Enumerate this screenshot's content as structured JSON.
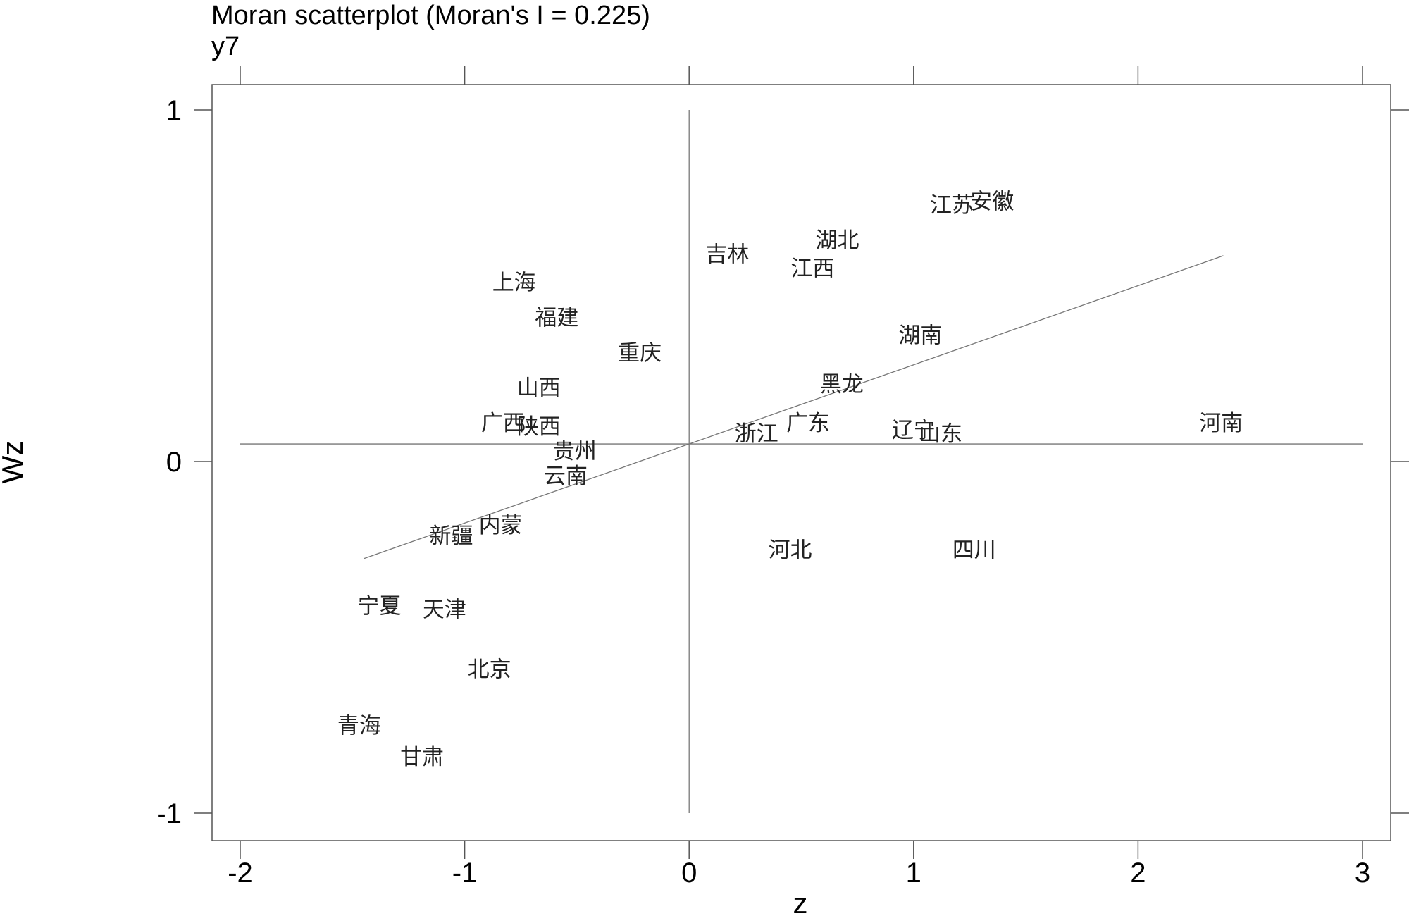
{
  "chart_data": {
    "type": "scatter",
    "title": "Moran scatterplot (Moran's I = 0.225)",
    "subtitle": "y7",
    "xlabel": "z",
    "ylabel": "Wz",
    "xlim": [
      -2.12,
      3.12
    ],
    "ylim": [
      -1.08,
      1.08
    ],
    "x_ticks": [
      -2,
      -1,
      0,
      1,
      2,
      3
    ],
    "x_tick_labels": [
      "-2",
      "-1",
      "0",
      "1",
      "2",
      "3"
    ],
    "y_ticks": [
      -1,
      0,
      1
    ],
    "y_tick_labels": [
      "-1",
      "0",
      "1"
    ],
    "grid": false,
    "legend": "none",
    "reference_lines": {
      "x": 0,
      "y": 0.05
    },
    "fit_line": {
      "slope": 0.225,
      "intercept": 0.05,
      "x_range": [
        -1.45,
        2.38
      ]
    },
    "points": [
      {
        "label": "江苏",
        "x": 1.17,
        "y": 0.73
      },
      {
        "label": "安徽",
        "x": 1.35,
        "y": 0.74
      },
      {
        "label": "湖北",
        "x": 0.66,
        "y": 0.63
      },
      {
        "label": "吉林",
        "x": 0.17,
        "y": 0.59
      },
      {
        "label": "江西",
        "x": 0.55,
        "y": 0.55
      },
      {
        "label": "上海",
        "x": -0.78,
        "y": 0.51
      },
      {
        "label": "福建",
        "x": -0.59,
        "y": 0.41
      },
      {
        "label": "重庆",
        "x": -0.22,
        "y": 0.31
      },
      {
        "label": "湖南",
        "x": 1.03,
        "y": 0.36
      },
      {
        "label": "黑龙",
        "x": 0.68,
        "y": 0.22
      },
      {
        "label": "山西",
        "x": -0.67,
        "y": 0.21
      },
      {
        "label": "广西",
        "x": -0.83,
        "y": 0.11
      },
      {
        "label": "陕西",
        "x": -0.67,
        "y": 0.1
      },
      {
        "label": "广东",
        "x": 0.53,
        "y": 0.11
      },
      {
        "label": "浙江",
        "x": 0.3,
        "y": 0.08
      },
      {
        "label": "辽宁",
        "x": 1.0,
        "y": 0.09
      },
      {
        "label": "山东",
        "x": 1.12,
        "y": 0.08
      },
      {
        "label": "河南",
        "x": 2.37,
        "y": 0.11
      },
      {
        "label": "贵州",
        "x": -0.51,
        "y": 0.03
      },
      {
        "label": "云南",
        "x": -0.55,
        "y": -0.04
      },
      {
        "label": "内蒙",
        "x": -0.84,
        "y": -0.18
      },
      {
        "label": "新疆",
        "x": -1.06,
        "y": -0.21
      },
      {
        "label": "河北",
        "x": 0.45,
        "y": -0.25
      },
      {
        "label": "四川",
        "x": 1.27,
        "y": -0.25
      },
      {
        "label": "宁夏",
        "x": -1.38,
        "y": -0.41
      },
      {
        "label": "天津",
        "x": -1.09,
        "y": -0.42
      },
      {
        "label": "北京",
        "x": -0.89,
        "y": -0.59
      },
      {
        "label": "青海",
        "x": -1.47,
        "y": -0.75
      },
      {
        "label": "甘肃",
        "x": -1.19,
        "y": -0.84
      }
    ]
  }
}
